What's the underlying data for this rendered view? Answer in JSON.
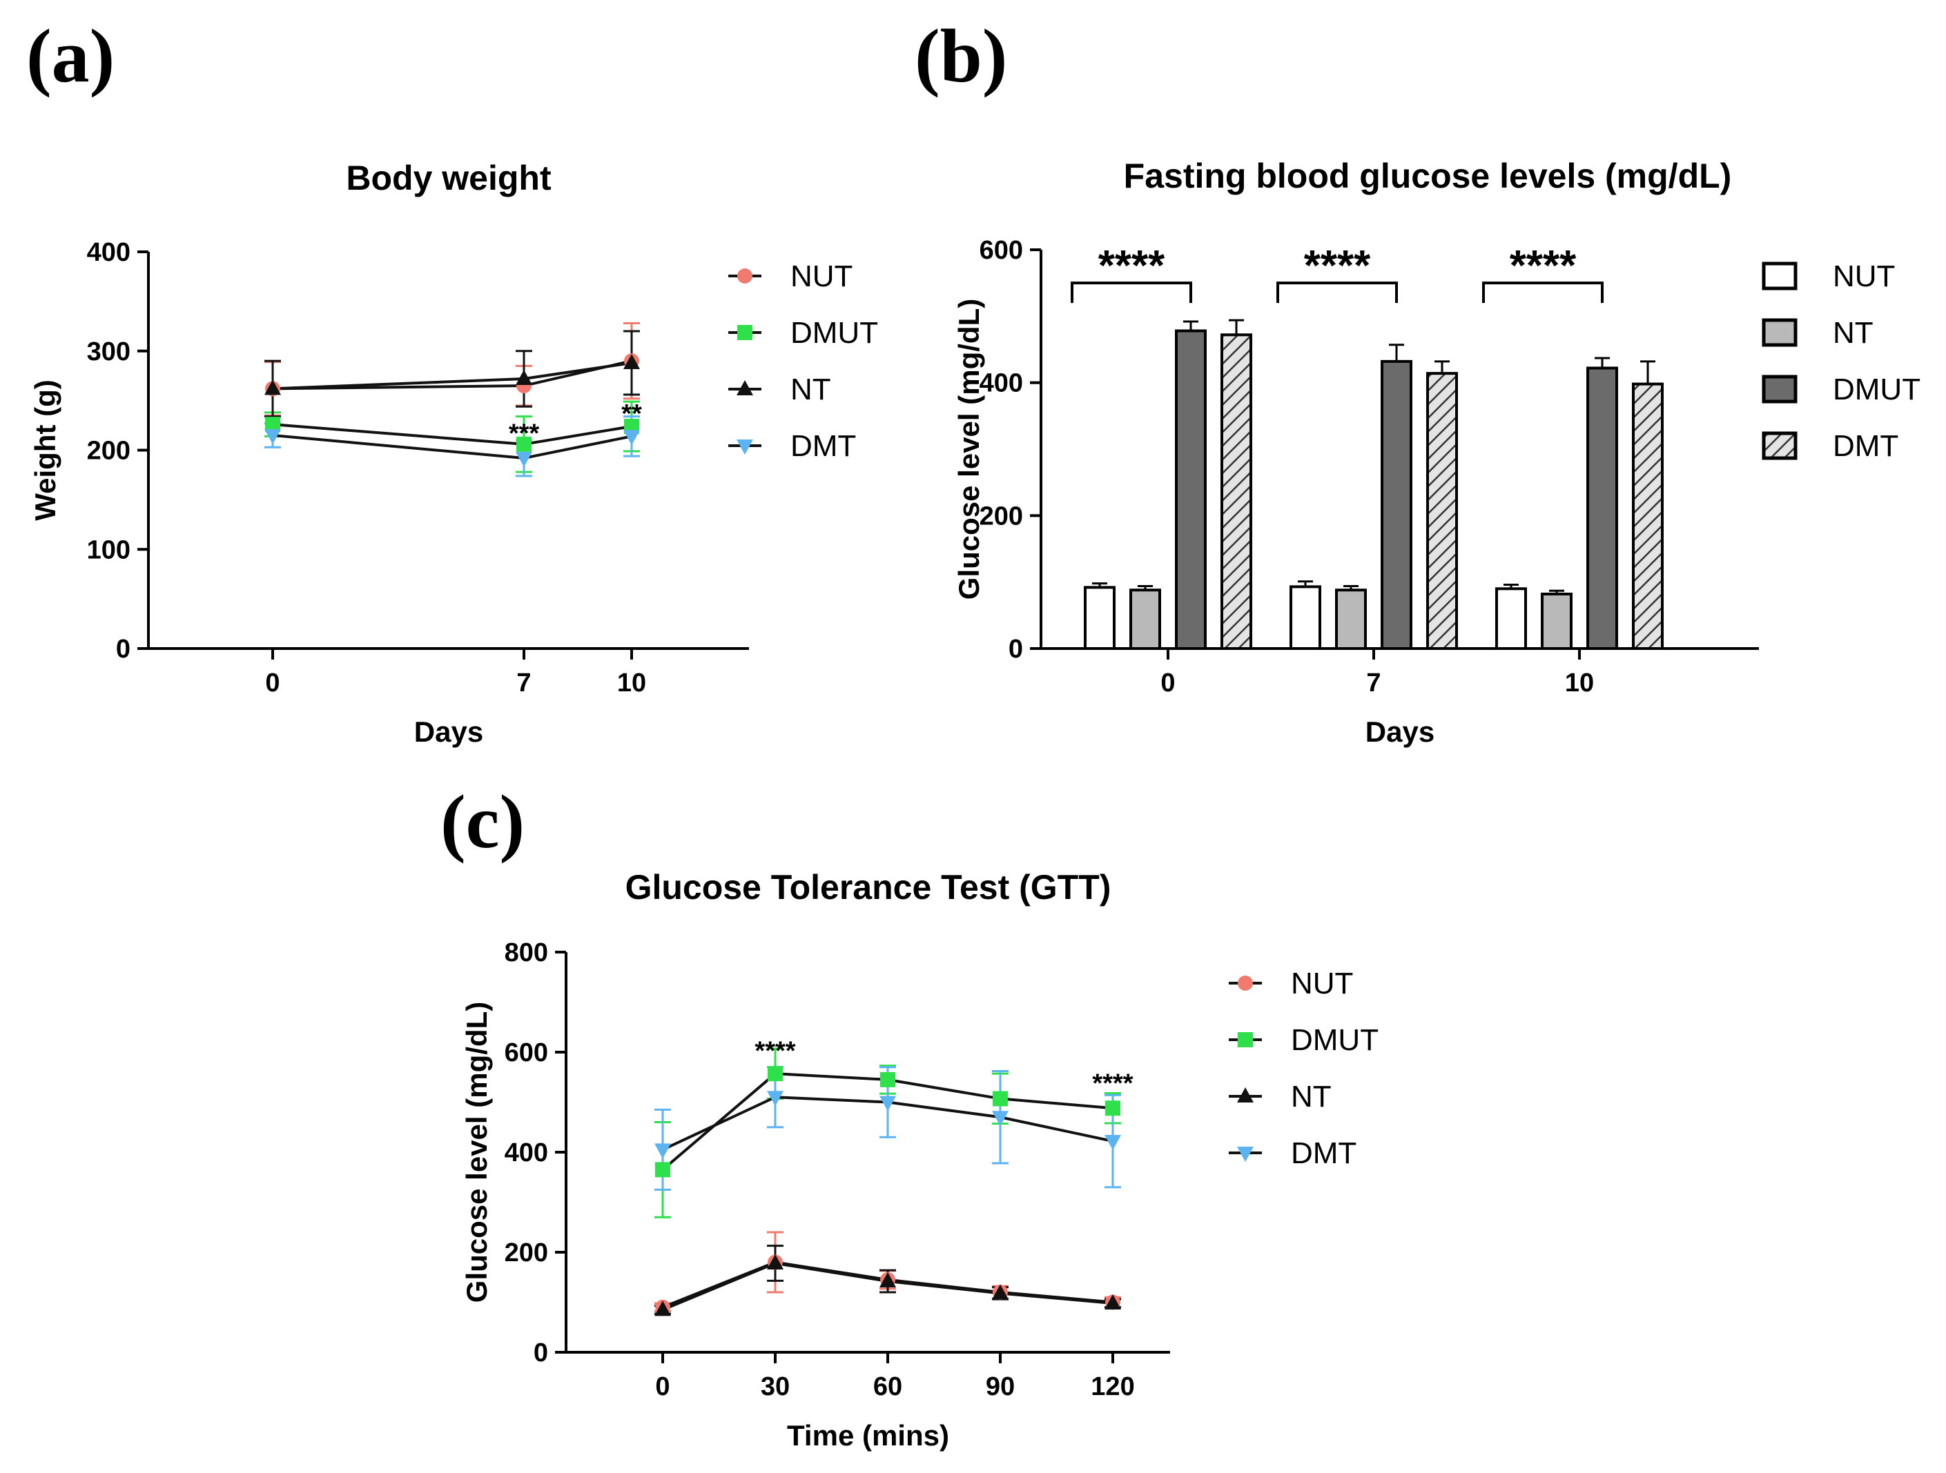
{
  "panel_labels": {
    "a": "(a)",
    "b": "(b)",
    "c": "(c)"
  },
  "colors": {
    "NUT": "#f07a6e",
    "DMUT": "#2ee04a",
    "NT": "#111111",
    "DMT": "#5bb4f0",
    "axis": "#000000"
  },
  "chart_data": [
    {
      "id": "a",
      "type": "line",
      "title": "Body weight",
      "xlabel": "Days",
      "ylabel": "Weight (g)",
      "x": [
        0,
        7,
        10
      ],
      "ylim": [
        0,
        400
      ],
      "yticks": [
        0,
        100,
        200,
        300,
        400
      ],
      "xtick_labels": [
        "0",
        "7",
        "10"
      ],
      "series": [
        {
          "name": "NUT",
          "marker": "circle",
          "values": [
            262,
            265,
            290
          ],
          "errors": [
            27,
            20,
            38
          ]
        },
        {
          "name": "DMUT",
          "marker": "square",
          "values": [
            226,
            206,
            224
          ],
          "errors": [
            12,
            28,
            25
          ]
        },
        {
          "name": "NT",
          "marker": "triangle-up",
          "values": [
            262,
            272,
            288
          ],
          "errors": [
            28,
            28,
            32
          ]
        },
        {
          "name": "DMT",
          "marker": "triangle-down",
          "values": [
            215,
            192,
            214
          ],
          "errors": [
            12,
            18,
            20
          ]
        }
      ],
      "annotations": [
        {
          "x": 7,
          "y": 218,
          "text": "***"
        },
        {
          "x": 10,
          "y": 238,
          "text": "**"
        }
      ],
      "legend": [
        "NUT",
        "DMUT",
        "NT",
        "DMT"
      ],
      "legend_position": "right"
    },
    {
      "id": "b",
      "type": "bar",
      "title": "Fasting blood glucose levels (mg/dL)",
      "xlabel": "Days",
      "ylabel": "Glucose level (mg/dL)",
      "categories": [
        "0",
        "7",
        "10"
      ],
      "ylim": [
        0,
        600
      ],
      "yticks": [
        0,
        200,
        400,
        600
      ],
      "series": [
        {
          "name": "NUT",
          "fill": "#ffffff",
          "pattern": "none",
          "values": [
            92,
            93,
            90
          ],
          "errors": [
            6,
            8,
            6
          ]
        },
        {
          "name": "NT",
          "fill": "#b9b9b9",
          "pattern": "none",
          "values": [
            88,
            88,
            82
          ],
          "errors": [
            6,
            6,
            5
          ]
        },
        {
          "name": "DMUT",
          "fill": "#6b6b6b",
          "pattern": "none",
          "values": [
            478,
            432,
            422
          ],
          "errors": [
            14,
            25,
            15
          ]
        },
        {
          "name": "DMT",
          "fill": "#e4e4e4",
          "pattern": "hatch",
          "values": [
            472,
            414,
            398
          ],
          "errors": [
            22,
            18,
            34
          ]
        }
      ],
      "significance": [
        {
          "category": "0",
          "text": "****"
        },
        {
          "category": "7",
          "text": "****"
        },
        {
          "category": "10",
          "text": "****"
        }
      ],
      "legend": [
        "NUT",
        "NT",
        "DMUT",
        "DMT"
      ],
      "legend_position": "right"
    },
    {
      "id": "c",
      "type": "line",
      "title": "Glucose Tolerance Test (GTT)",
      "xlabel": "Time (mins)",
      "ylabel": "Glucose level (mg/dL)",
      "x": [
        0,
        30,
        60,
        90,
        120
      ],
      "ylim": [
        0,
        800
      ],
      "yticks": [
        0,
        200,
        400,
        600,
        800
      ],
      "xtick_labels": [
        "0",
        "30",
        "60",
        "90",
        "120"
      ],
      "series": [
        {
          "name": "NUT",
          "marker": "circle",
          "values": [
            90,
            180,
            145,
            120,
            100
          ],
          "errors": [
            8,
            60,
            18,
            12,
            10
          ]
        },
        {
          "name": "DMUT",
          "marker": "square",
          "values": [
            365,
            557,
            545,
            507,
            488
          ],
          "errors": [
            95,
            50,
            28,
            50,
            30
          ]
        },
        {
          "name": "NT",
          "marker": "triangle-up",
          "values": [
            85,
            178,
            142,
            118,
            98
          ],
          "errors": [
            8,
            35,
            22,
            12,
            8
          ]
        },
        {
          "name": "DMT",
          "marker": "triangle-down",
          "values": [
            405,
            510,
            500,
            470,
            422
          ],
          "errors": [
            80,
            60,
            70,
            92,
            92
          ]
        }
      ],
      "annotations": [
        {
          "x": 30,
          "y": 605,
          "text": "****"
        },
        {
          "x": 120,
          "y": 540,
          "text": "****"
        }
      ],
      "legend": [
        "NUT",
        "DMUT",
        "NT",
        "DMT"
      ],
      "legend_position": "right"
    }
  ]
}
